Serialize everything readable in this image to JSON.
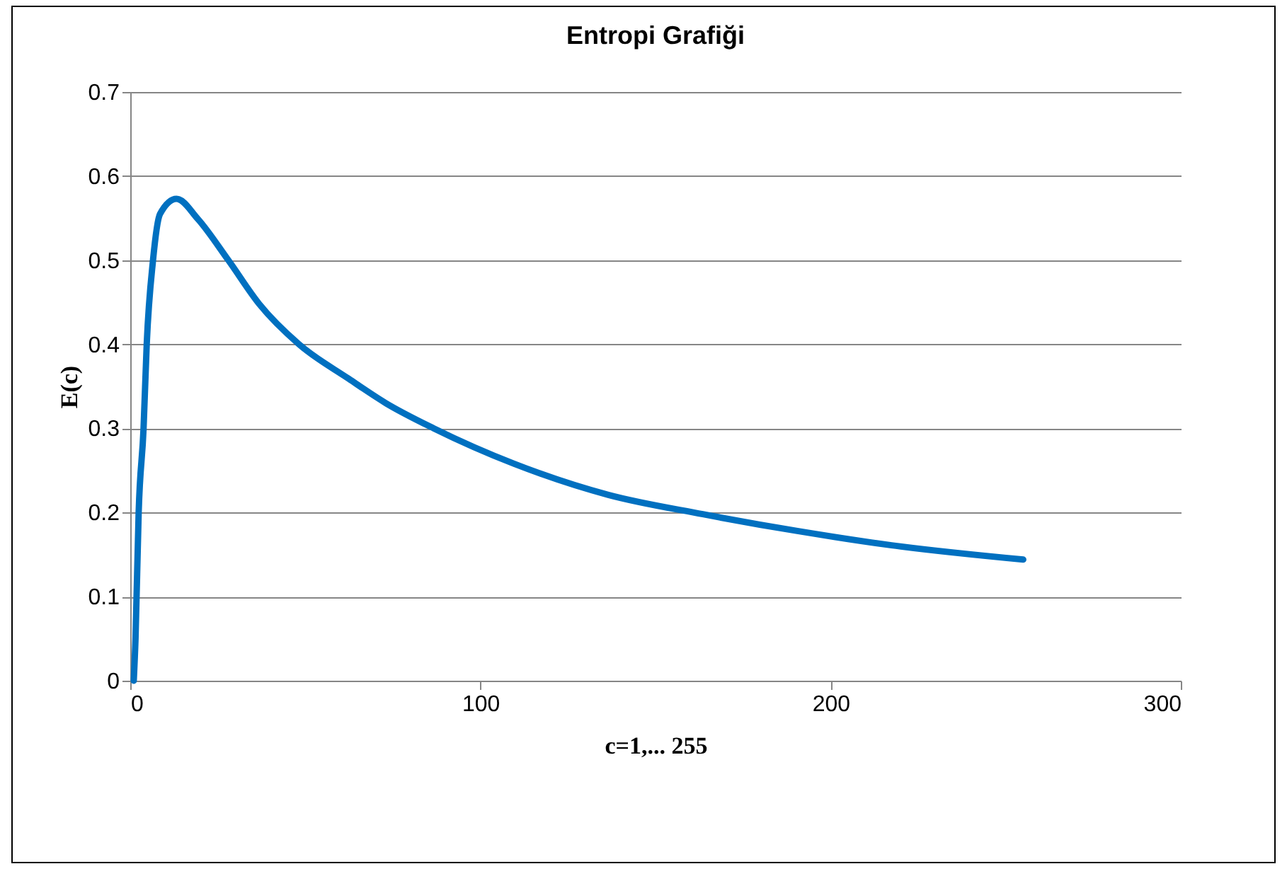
{
  "chart_data": {
    "type": "line",
    "title": "Entropi Grafiği",
    "xlabel": "c=1,...  255",
    "ylabel": "E(c)",
    "x": [
      1,
      1.5,
      2.4,
      3.8,
      4.7,
      6.5,
      8.5,
      13.2,
      19.3,
      28,
      36.8,
      48.2,
      62.4,
      73,
      86.7,
      109.6,
      136.5,
      163.5,
      190.5,
      217.4,
      255
    ],
    "series": [
      {
        "color": "#0070c0",
        "values": [
          0,
          0.05,
          0.2,
          0.3,
          0.4,
          0.5,
          0.555,
          0.573,
          0.549,
          0.5,
          0.448,
          0.4,
          0.359,
          0.33,
          0.3,
          0.258,
          0.221,
          0.198,
          0.178,
          0.161,
          0.144
        ]
      }
    ],
    "xlim": [
      0,
      300
    ],
    "xticks": [
      0,
      100,
      200,
      300
    ],
    "ylim": [
      0,
      0.7
    ],
    "yticks": [
      0,
      0.1,
      0.2,
      0.3,
      0.4,
      0.5,
      0.6,
      0.7
    ],
    "grid": "y",
    "marker": "none",
    "line_style": "solid"
  }
}
